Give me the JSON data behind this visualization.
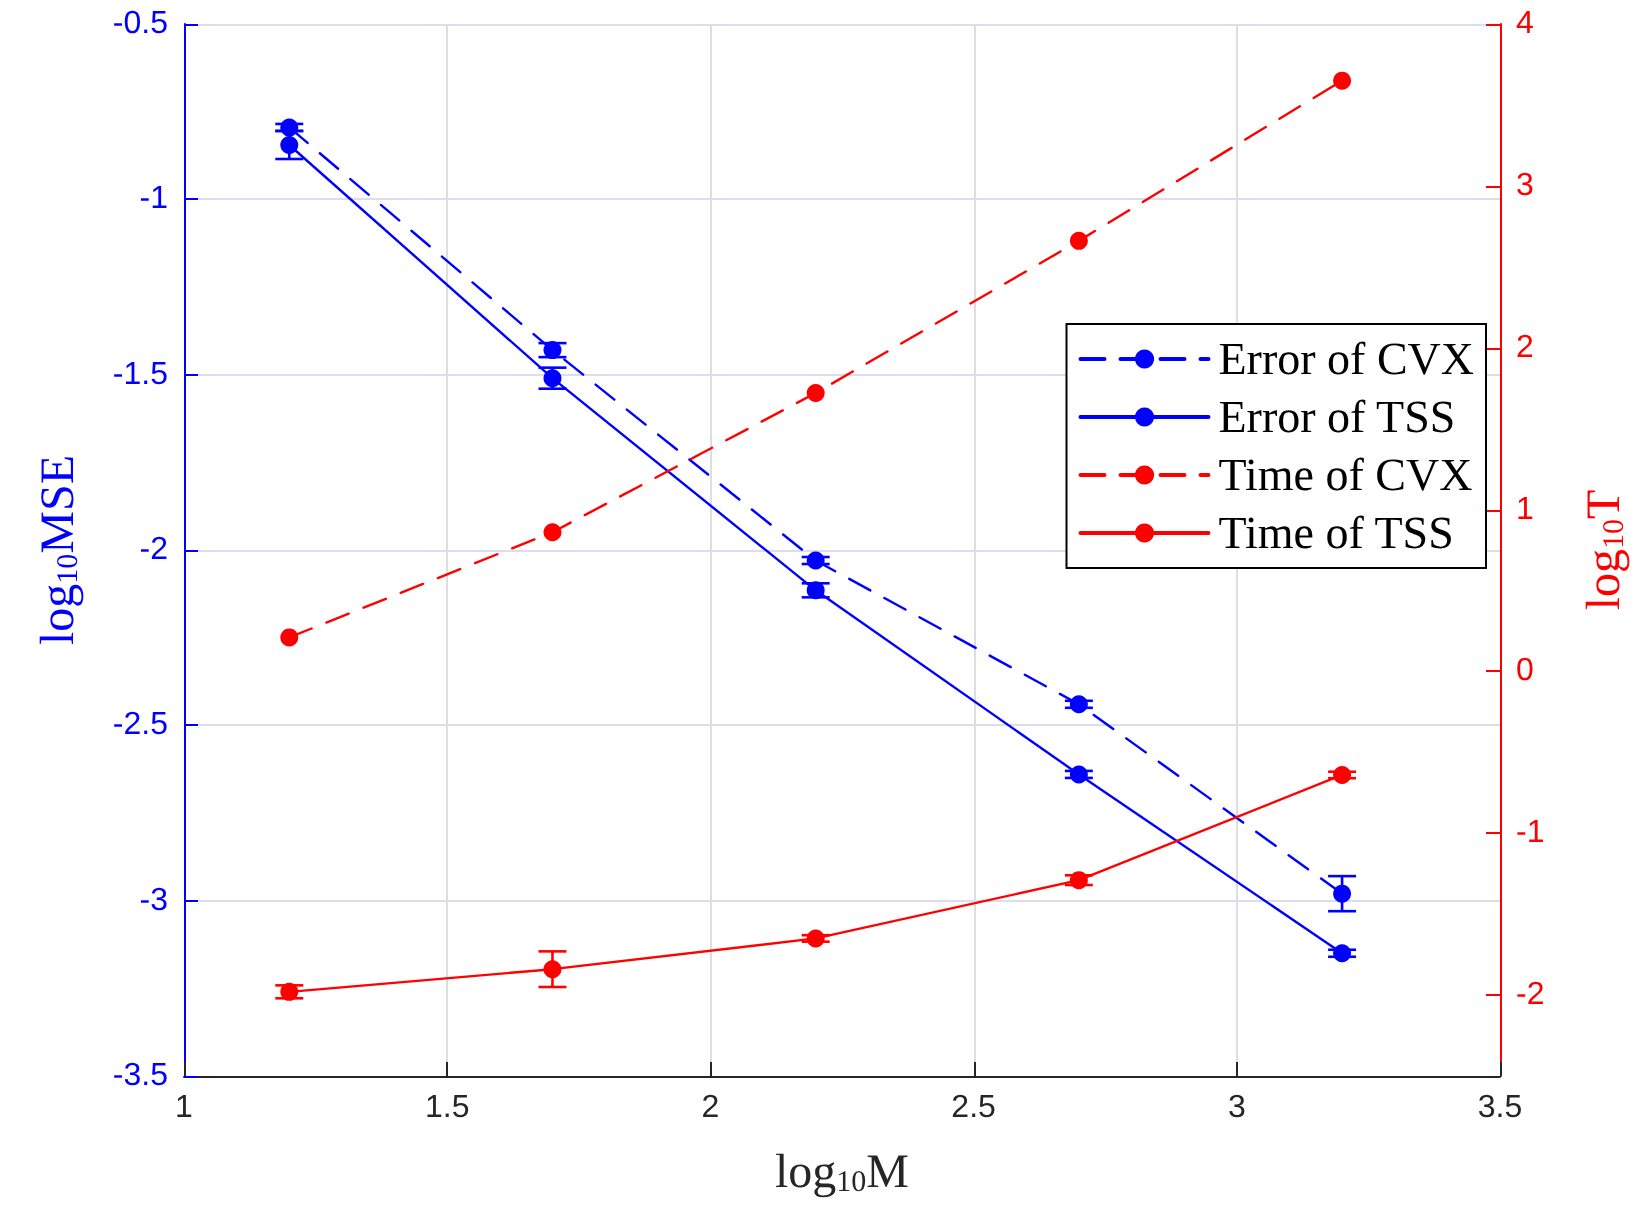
{
  "chart_data": {
    "type": "line",
    "xlabel": "log$_{10}$M",
    "ylabel": "log$_{10}$MSE",
    "y2label": "log$_{10}$T",
    "x": [
      1.2,
      1.7,
      2.2,
      2.7,
      3.2
    ],
    "series": [
      {
        "name": "Error of CVX",
        "color": "#0000ff",
        "line_style": "dashed",
        "values": [
          -0.795,
          -1.43,
          -2.03,
          -2.44,
          -2.98
        ],
        "errors": [
          0.01,
          0.02,
          0.01,
          0.01,
          0.05
        ]
      },
      {
        "name": "Error of TSS",
        "color": "#0000ff",
        "line_style": "solid",
        "values": [
          -0.845,
          -1.51,
          -2.115,
          -2.64,
          -3.15
        ],
        "errors": [
          0.04,
          0.03,
          0.02,
          0.01,
          0.01
        ]
      },
      {
        "name": "Time of CVX",
        "color": "#ff0000",
        "line_style": "dashed",
        "axis": "y2",
        "values": [
          0.21,
          0.86,
          1.72,
          2.66,
          3.65
        ]
      },
      {
        "name": "Time of TSS",
        "color": "#ff0000",
        "line_style": "solid",
        "axis": "y2",
        "values": [
          -1.98,
          -1.84,
          -1.65,
          -1.29,
          -0.64
        ],
        "errors": [
          0.04,
          0.11,
          0.02,
          0.03,
          0.02
        ]
      }
    ],
    "xlim": [
      1,
      3.5
    ],
    "xticks": [
      1,
      1.5,
      2,
      2.5,
      3,
      3.5
    ],
    "ylim": [
      -3.5,
      -0.5
    ],
    "yticks": [
      -3.5,
      -3,
      -2.5,
      -2,
      -1.5,
      -1,
      -0.5
    ],
    "y2lim": [
      -2.5,
      4
    ],
    "y2ticks": [
      -2,
      -1,
      0,
      1,
      2,
      3,
      4
    ],
    "grid": true,
    "legend": "right",
    "marker": "circle"
  }
}
